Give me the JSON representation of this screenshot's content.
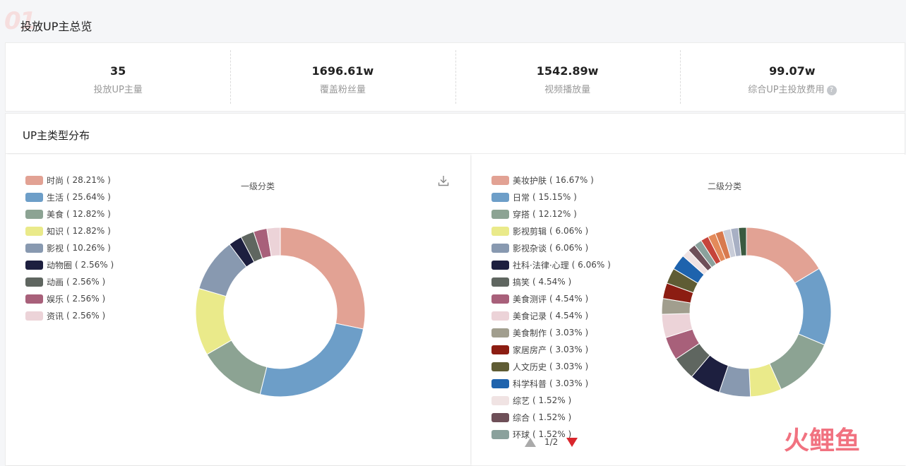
{
  "watermark_top": "01",
  "page_title": "投放UP主总览",
  "stats": [
    {
      "value": "35",
      "label": "投放UP主量"
    },
    {
      "value": "1696.61w",
      "label": "覆盖粉丝量"
    },
    {
      "value": "1542.89w",
      "label": "视频播放量"
    },
    {
      "value": "99.07w",
      "label": "综合UP主投放费用"
    }
  ],
  "help_icon": "?",
  "distribution_title": "UP主类型分布",
  "chart_data": [
    {
      "type": "pie",
      "title": "一级分类",
      "categories": [
        "时尚",
        "生活",
        "美食",
        "知识",
        "影视",
        "动物圈",
        "动画",
        "娱乐",
        "资讯"
      ],
      "values": [
        28.21,
        25.64,
        12.82,
        12.82,
        10.26,
        2.56,
        2.56,
        2.56,
        2.56
      ],
      "labels": [
        "( 28.21% )",
        "( 25.64% )",
        "( 12.82% )",
        "( 12.82% )",
        "( 10.26% )",
        "( 2.56% )",
        "( 2.56% )",
        "( 2.56% )",
        "( 2.56% )"
      ],
      "colors": [
        "#e2a294",
        "#6d9ec8",
        "#8ca393",
        "#eaea8a",
        "#8899b0",
        "#1d1f3f",
        "#5f6660",
        "#a8607a",
        "#ecd3d8"
      ],
      "legend_position": "top-left"
    },
    {
      "type": "pie",
      "title": "二级分类",
      "categories": [
        "美妆护肤",
        "日常",
        "穿搭",
        "影视剪辑",
        "影视杂谈",
        "社科·法律·心理",
        "搞笑",
        "美食测评",
        "美食记录",
        "美食制作",
        "家居房产",
        "人文历史",
        "科学科普",
        "综艺",
        "综合",
        "环球",
        "",
        "",
        "",
        "",
        "",
        ""
      ],
      "values": [
        16.67,
        15.15,
        12.12,
        6.06,
        6.06,
        6.06,
        4.54,
        4.54,
        4.54,
        3.03,
        3.03,
        3.03,
        3.03,
        1.52,
        1.52,
        1.52,
        1.52,
        1.52,
        1.52,
        1.52,
        1.52,
        1.52
      ],
      "labels": [
        "( 16.67% )",
        "( 15.15% )",
        "( 12.12% )",
        "( 6.06% )",
        "( 6.06% )",
        "( 6.06% )",
        "( 4.54% )",
        "( 4.54% )",
        "( 4.54% )",
        "( 3.03% )",
        "( 3.03% )",
        "( 3.03% )",
        "( 3.03% )",
        "( 1.52% )",
        "( 1.52% )",
        "( 1.52% )"
      ],
      "colors": [
        "#e2a294",
        "#6d9ec8",
        "#8ca393",
        "#eaea8a",
        "#8899b0",
        "#1d1f3f",
        "#5f6660",
        "#a8607a",
        "#ecd3d8",
        "#a19e8e",
        "#8c1d12",
        "#5f5c34",
        "#1e63ad",
        "#f0e3e3",
        "#6e4f58",
        "#8aa19c",
        "#c6443b",
        "#e38a5a",
        "#d87a4e",
        "#c8ccd8",
        "#a8b0c4",
        "#3a5a40"
      ],
      "legend_position": "top-left",
      "legend_visible_count": 16,
      "pagination": "1/2"
    }
  ],
  "icons": {
    "download": "download-icon",
    "page_up": "triangle-up-icon",
    "page_down": "triangle-down-icon"
  },
  "watermark_logo": "火鲤鱼"
}
